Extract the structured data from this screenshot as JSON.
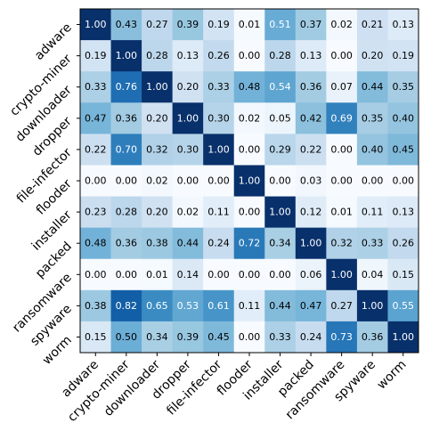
{
  "chart_data": {
    "type": "heatmap",
    "title": "",
    "xlabel": "",
    "ylabel": "",
    "rows": [
      "adware",
      "crypto-miner",
      "downloader",
      "dropper",
      "file-infector",
      "flooder",
      "installer",
      "packed",
      "ransomware",
      "spyware",
      "worm"
    ],
    "columns": [
      "adware",
      "crypto-miner",
      "downloader",
      "dropper",
      "file-infector",
      "flooder",
      "installer",
      "packed",
      "ransomware",
      "spyware",
      "worm"
    ],
    "values": [
      [
        "1.00",
        "0.43",
        "0.27",
        "0.39",
        "0.19",
        "0.01",
        "0.51",
        "0.37",
        "0.02",
        "0.21",
        "0.13"
      ],
      [
        "0.19",
        "1.00",
        "0.28",
        "0.13",
        "0.26",
        "0.00",
        "0.28",
        "0.13",
        "0.00",
        "0.20",
        "0.19"
      ],
      [
        "0.33",
        "0.76",
        "1.00",
        "0.20",
        "0.33",
        "0.48",
        "0.54",
        "0.36",
        "0.07",
        "0.44",
        "0.35"
      ],
      [
        "0.47",
        "0.36",
        "0.20",
        "1.00",
        "0.30",
        "0.02",
        "0.05",
        "0.42",
        "0.69",
        "0.35",
        "0.40"
      ],
      [
        "0.22",
        "0.70",
        "0.32",
        "0.30",
        "1.00",
        "0.00",
        "0.29",
        "0.22",
        "0.00",
        "0.40",
        "0.45"
      ],
      [
        "0.00",
        "0.00",
        "0.02",
        "0.00",
        "0.00",
        "1.00",
        "0.00",
        "0.03",
        "0.00",
        "0.00",
        "0.00"
      ],
      [
        "0.23",
        "0.28",
        "0.20",
        "0.02",
        "0.11",
        "0.00",
        "1.00",
        "0.12",
        "0.01",
        "0.11",
        "0.13"
      ],
      [
        "0.48",
        "0.36",
        "0.38",
        "0.44",
        "0.24",
        "0.72",
        "0.34",
        "1.00",
        "0.32",
        "0.33",
        "0.26"
      ],
      [
        "0.00",
        "0.00",
        "0.01",
        "0.14",
        "0.00",
        "0.00",
        "0.00",
        "0.06",
        "1.00",
        "0.04",
        "0.15"
      ],
      [
        "0.38",
        "0.82",
        "0.65",
        "0.53",
        "0.61",
        "0.11",
        "0.44",
        "0.47",
        "0.27",
        "1.00",
        "0.55"
      ],
      [
        "0.15",
        "0.50",
        "0.34",
        "0.39",
        "0.45",
        "0.00",
        "0.33",
        "0.24",
        "0.73",
        "0.36",
        "1.00"
      ]
    ],
    "colormap": "Blues",
    "vmin": 0,
    "vmax": 1,
    "colorbar": false,
    "grid": false
  }
}
